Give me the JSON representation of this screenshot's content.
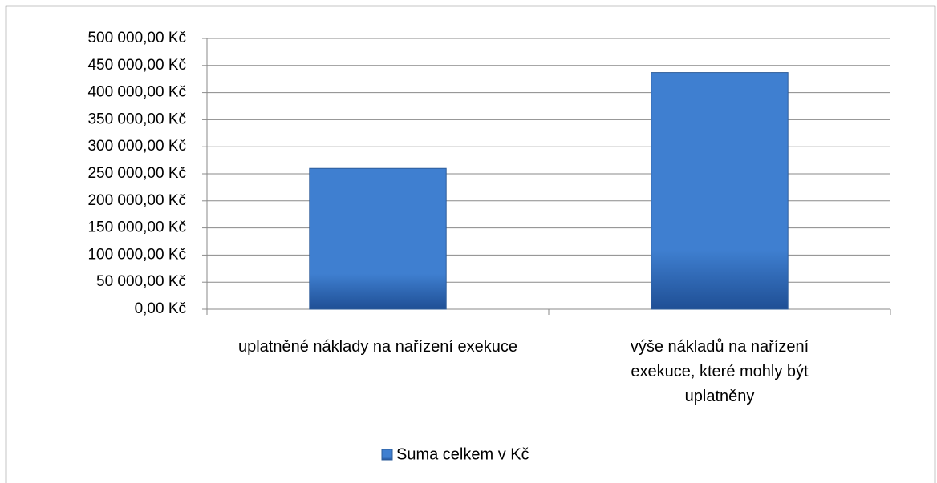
{
  "chart_data": {
    "type": "bar",
    "categories": [
      "uplatněné náklady na nařízení exekuce",
      "výše nákladů na nařízení exekuce, které mohly být uplatněny"
    ],
    "series": [
      {
        "name": "Suma celkem v Kč",
        "color": "#3f7fd0",
        "values": [
          260000,
          437000
        ]
      }
    ],
    "ylim": [
      0,
      500000
    ],
    "yticks": [
      {
        "value": 0,
        "label": "0,00 Kč"
      },
      {
        "value": 50000,
        "label": "50 000,00 Kč"
      },
      {
        "value": 100000,
        "label": "100 000,00 Kč"
      },
      {
        "value": 150000,
        "label": "150 000,00 Kč"
      },
      {
        "value": 200000,
        "label": "200 000,00 Kč"
      },
      {
        "value": 250000,
        "label": "250 000,00 Kč"
      },
      {
        "value": 300000,
        "label": "300 000,00 Kč"
      },
      {
        "value": 350000,
        "label": "350 000,00 Kč"
      },
      {
        "value": 400000,
        "label": "400 000,00 Kč"
      },
      {
        "value": 450000,
        "label": "450 000,00 Kč"
      },
      {
        "value": 500000,
        "label": "500 000,00 Kč"
      }
    ],
    "grid": true,
    "legend": "bottom"
  }
}
